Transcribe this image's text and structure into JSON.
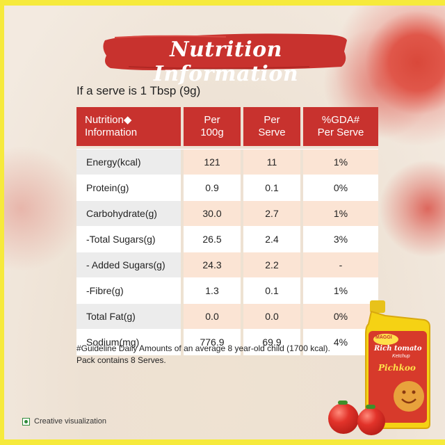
{
  "title": "Nutrition Information",
  "serve_text": "If a serve is 1 Tbsp (9g)",
  "table": {
    "headers": [
      {
        "line1": "Nutrition◆",
        "line2": "Information"
      },
      {
        "line1": "Per",
        "line2": "100g"
      },
      {
        "line1": "Per",
        "line2": "Serve"
      },
      {
        "line1": "%GDA#",
        "line2": "Per Serve"
      }
    ],
    "rows": [
      {
        "name": "Energy(kcal)",
        "per100g": "121",
        "perServe": "11",
        "gda": "1%"
      },
      {
        "name": "Protein(g)",
        "per100g": "0.9",
        "perServe": "0.1",
        "gda": "0%"
      },
      {
        "name": "Carbohydrate(g)",
        "per100g": "30.0",
        "perServe": "2.7",
        "gda": "1%"
      },
      {
        "name": " -Total Sugars(g)",
        "per100g": "26.5",
        "perServe": "2.4",
        "gda": "3%"
      },
      {
        "name": " - Added Sugars(g)",
        "per100g": "24.3",
        "perServe": "2.2",
        "gda": "-"
      },
      {
        "name": " -Fibre(g)",
        "per100g": "1.3",
        "perServe": "0.1",
        "gda": "1%"
      },
      {
        "name": "Total Fat(g)",
        "per100g": "0.0",
        "perServe": "0.0",
        "gda": "0%"
      },
      {
        "name": " Sodium(mg)",
        "per100g": "776.9",
        "perServe": "69.9",
        "gda": "4%"
      }
    ]
  },
  "footnote": {
    "line1": "#Guideline Daily Amounts of an average 8 year-old child (1700 kcal).",
    "line2": "Pack contains 8 Serves."
  },
  "creative": "Creative visualization",
  "pack": {
    "brand": "MAGGI",
    "line1": "Rich tomato",
    "line2": "Ketchup",
    "product": "Pichkoo"
  },
  "colors": {
    "header_red": "#c8322e",
    "frame_yellow": "#f6ea3c",
    "peach": "#fbe4d4"
  }
}
